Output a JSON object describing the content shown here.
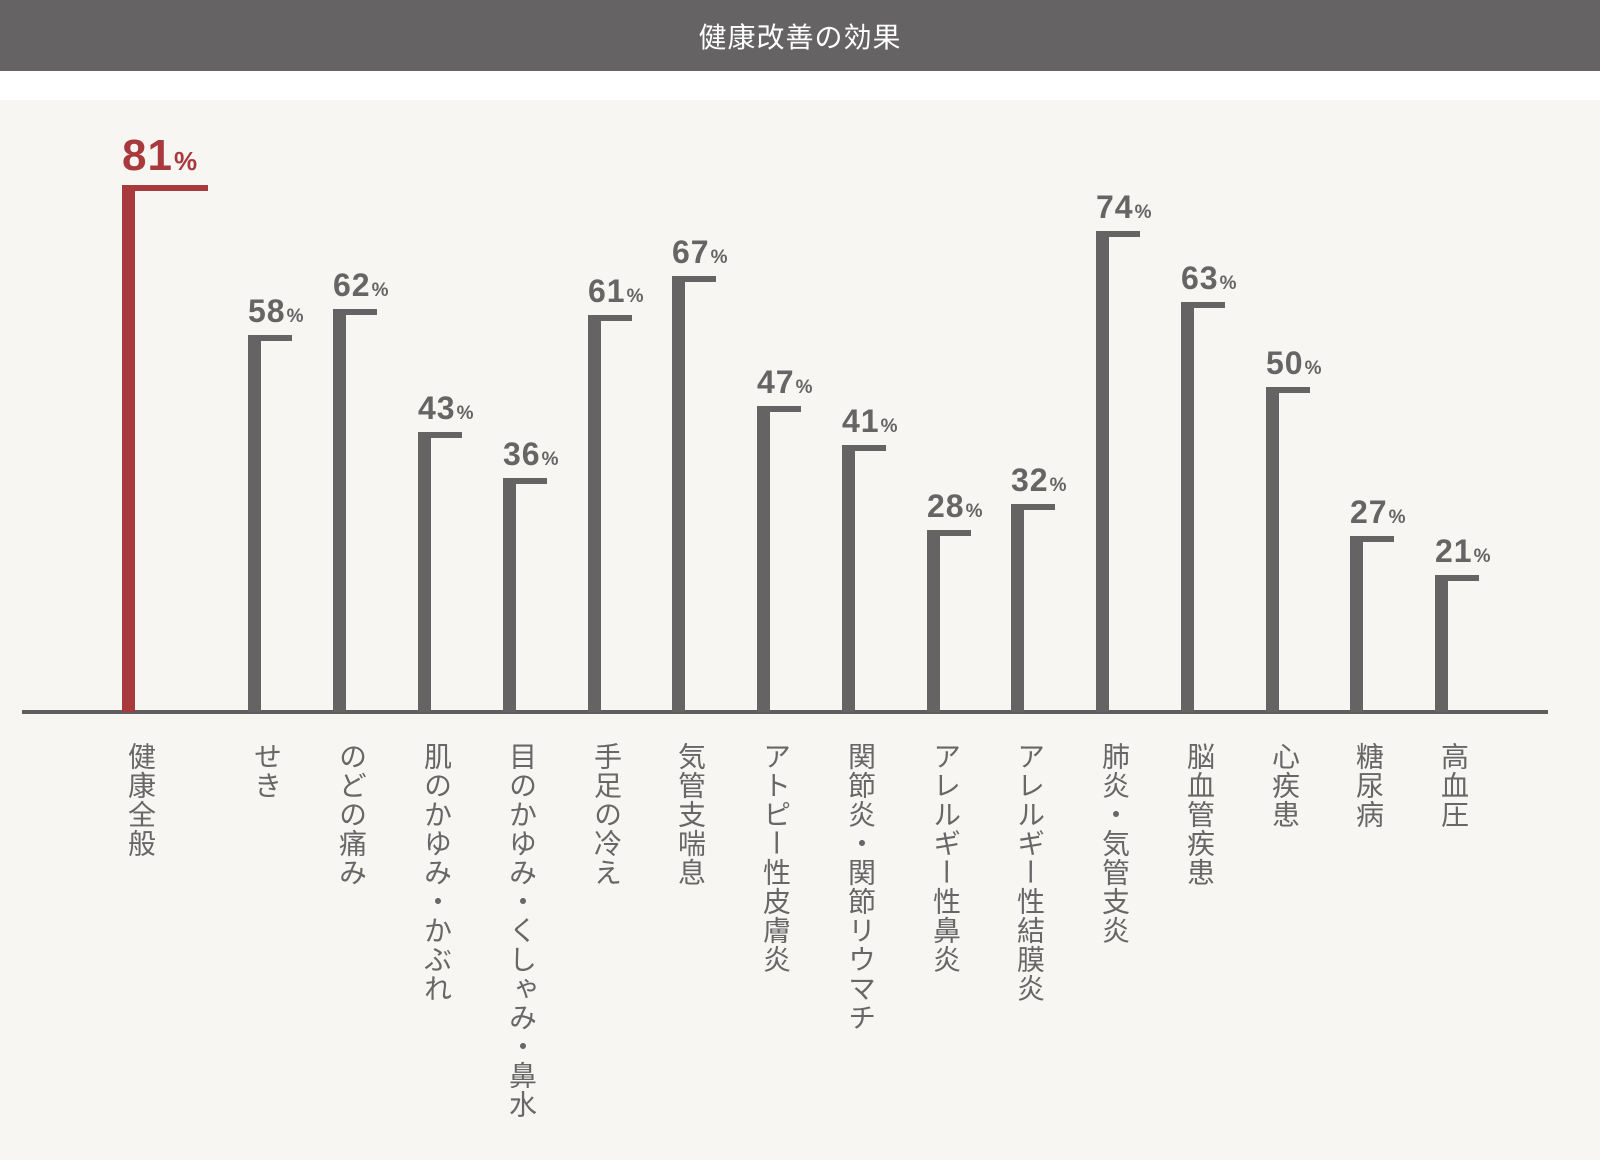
{
  "header": {
    "title": "健康改善の効果"
  },
  "colors": {
    "header_bg": "#656364",
    "panel_bg": "#f8f6f2",
    "bar": "#656364",
    "highlight": "#a8393d",
    "axis": "#5f5d5e"
  },
  "percent_suffix": "%",
  "bars": [
    {
      "label": "健康全般",
      "value": 81,
      "value_text": "81",
      "highlight": true
    },
    {
      "label": "せき",
      "value": 58,
      "value_text": "58",
      "highlight": false
    },
    {
      "label": "のどの痛み",
      "value": 62,
      "value_text": "62",
      "highlight": false
    },
    {
      "label": "肌のかゆみ・かぶれ",
      "value": 43,
      "value_text": "43",
      "highlight": false
    },
    {
      "label": "目のかゆみ・くしゃみ・鼻水",
      "value": 36,
      "value_text": "36",
      "highlight": false
    },
    {
      "label": "手足の冷え",
      "value": 61,
      "value_text": "61",
      "highlight": false
    },
    {
      "label": "気管支喘息",
      "value": 67,
      "value_text": "67",
      "highlight": false
    },
    {
      "label": "アトピー性皮膚炎",
      "value": 47,
      "value_text": "47",
      "highlight": false
    },
    {
      "label": "関節炎・関節リウマチ",
      "value": 41,
      "value_text": "41",
      "highlight": false
    },
    {
      "label": "アレルギー性鼻炎",
      "value": 28,
      "value_text": "28",
      "highlight": false
    },
    {
      "label": "アレルギー性結膜炎",
      "value": 32,
      "value_text": "32",
      "highlight": false
    },
    {
      "label": "肺炎・気管支炎",
      "value": 74,
      "value_text": "74",
      "highlight": false
    },
    {
      "label": "脳血管疾患",
      "value": 63,
      "value_text": "63",
      "highlight": false
    },
    {
      "label": "心疾患",
      "value": 50,
      "value_text": "50",
      "highlight": false
    },
    {
      "label": "糖尿病",
      "value": 27,
      "value_text": "27",
      "highlight": false
    },
    {
      "label": "高血圧",
      "value": 21,
      "value_text": "21",
      "highlight": false
    }
  ],
  "chart_data": {
    "type": "bar",
    "title": "健康改善の効果",
    "xlabel": "",
    "ylabel": "",
    "unit": "%",
    "categories": [
      "健康全般",
      "せき",
      "のどの痛み",
      "肌のかゆみ・かぶれ",
      "目のかゆみ・くしゃみ・鼻水",
      "手足の冷え",
      "気管支喘息",
      "アトピー性皮膚炎",
      "関節炎・関節リウマチ",
      "アレルギー性鼻炎",
      "アレルギー性結膜炎",
      "肺炎・気管支炎",
      "脳血管疾患",
      "心疾患",
      "糖尿病",
      "高血圧"
    ],
    "values": [
      81,
      58,
      62,
      43,
      36,
      61,
      67,
      47,
      41,
      28,
      32,
      74,
      63,
      50,
      27,
      21
    ],
    "highlighted_category": "健康全般",
    "ylim": [
      0,
      100
    ],
    "grid": false,
    "legend": null,
    "data_labels": true,
    "label_orientation": "vertical"
  }
}
